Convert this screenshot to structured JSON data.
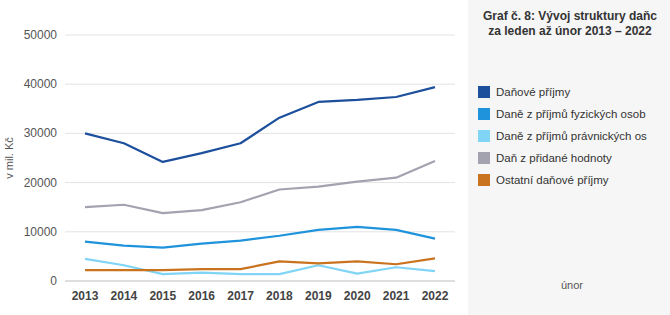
{
  "chart_data": {
    "type": "line",
    "title": "Graf č. 8: Vývoj struktury daňc\nza leden až únor 2013 – 2022",
    "y_label": "v mil. Kč",
    "annotation": "únor",
    "categories": [
      "2013",
      "2014",
      "2015",
      "2016",
      "2017",
      "2018",
      "2019",
      "2020",
      "2021",
      "2022"
    ],
    "series": [
      {
        "name": "Daňové příjmy",
        "color": "#1c4f9c",
        "values": [
          30000,
          28000,
          24200,
          26000,
          28000,
          33200,
          36400,
          36800,
          37400,
          39400
        ]
      },
      {
        "name": "Daně z příjmů fyzických osob",
        "color": "#1f93dc",
        "values": [
          8000,
          7200,
          6800,
          7600,
          8200,
          9200,
          10400,
          11000,
          10400,
          8600
        ]
      },
      {
        "name": "Daně z příjmů právnických os",
        "color": "#80d4f6",
        "values": [
          4500,
          3200,
          1400,
          1700,
          1400,
          1400,
          3200,
          1500,
          2800,
          2000
        ]
      },
      {
        "name": "Daň z přidané hodnoty",
        "color": "#a3a3b0",
        "values": [
          15000,
          15500,
          13800,
          14400,
          16000,
          18600,
          19200,
          20200,
          21000,
          24400
        ]
      },
      {
        "name": "Ostatní daňové příjmy",
        "color": "#c9731f",
        "values": [
          2200,
          2200,
          2200,
          2400,
          2400,
          4000,
          3600,
          4000,
          3400,
          4600
        ]
      }
    ],
    "ylim": [
      0,
      50000
    ],
    "yticks": [
      0,
      10000,
      20000,
      30000,
      40000,
      50000
    ],
    "grid": true,
    "legend": "right"
  }
}
